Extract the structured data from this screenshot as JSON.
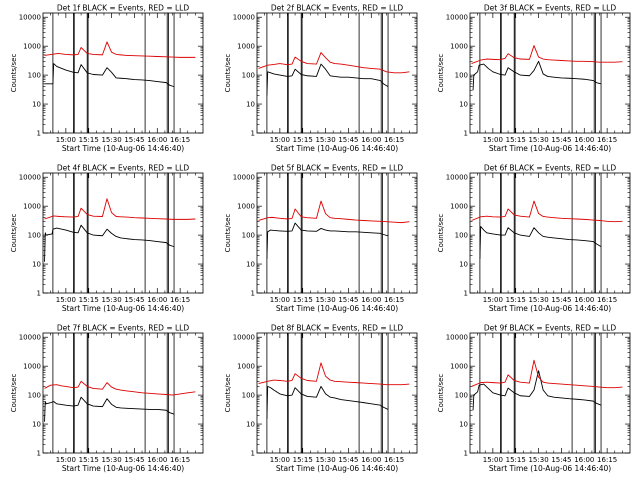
{
  "colors": {
    "events": "#000000",
    "lld": "#dd0000",
    "axis": "#000000"
  },
  "shared": {
    "xlabel": "Start Time (10-Aug-06 14:46:40)",
    "ylabel": "Counts/sec",
    "xtick_labels": [
      "15:00",
      "15:15",
      "15:30",
      "15:45",
      "16:00",
      "16:15"
    ],
    "xtick_minutes": [
      0,
      15,
      30,
      45,
      60,
      75
    ],
    "ytick_labels": [
      "1",
      "10",
      "100",
      "1000",
      "10000"
    ],
    "ytick_values": [
      1,
      10,
      100,
      1000,
      10000
    ],
    "xlim_minutes": [
      -15,
      90
    ],
    "ylim": [
      1,
      14000
    ],
    "scale_y": "log",
    "vertical_markers_minutes": [
      -8.5,
      5,
      5.5,
      14,
      14.6,
      52,
      66.5,
      67.3,
      71
    ]
  },
  "chart_data": [
    {
      "type": "line",
      "title": "Det 1f BLACK = Events, RED = LLD",
      "xlabel": "Start Time (10-Aug-06 14:46:40)",
      "ylabel": "Counts/sec",
      "scale_y": "log",
      "series": [
        {
          "name": "Events",
          "x": [
            -14,
            -8.5,
            -8,
            -6,
            0,
            5,
            8,
            10,
            14,
            18,
            24,
            27,
            30,
            33,
            36,
            40,
            45,
            50,
            55,
            60,
            66,
            68,
            71
          ],
          "y": [
            50,
            50,
            250,
            200,
            150,
            125,
            120,
            230,
            120,
            105,
            100,
            180,
            125,
            80,
            78,
            75,
            70,
            68,
            65,
            60,
            55,
            45,
            40
          ]
        },
        {
          "name": "LLD",
          "x": [
            -14,
            -5,
            0,
            5,
            8,
            10,
            14,
            18,
            24,
            27,
            30,
            33,
            36,
            40,
            45,
            50,
            55,
            60,
            66,
            70,
            75,
            80,
            85
          ],
          "y": [
            480,
            560,
            520,
            500,
            520,
            900,
            560,
            520,
            500,
            1400,
            620,
            520,
            500,
            480,
            470,
            460,
            450,
            440,
            430,
            420,
            410,
            410,
            410
          ]
        }
      ]
    },
    {
      "type": "line",
      "title": "Det 2f BLACK = Events, RED = LLD",
      "xlabel": "Start Time (10-Aug-06 14:46:40)",
      "ylabel": "Counts/sec",
      "scale_y": "log",
      "series": [
        {
          "name": "Events",
          "x": [
            -8.5,
            -8,
            -6,
            -4,
            0,
            5,
            8,
            10,
            14,
            18,
            24,
            27,
            30,
            33,
            36,
            40,
            45,
            50,
            55,
            60,
            66,
            68,
            71
          ],
          "y": [
            20,
            130,
            120,
            110,
            100,
            90,
            95,
            160,
            105,
            95,
            90,
            240,
            160,
            95,
            90,
            85,
            85,
            80,
            75,
            75,
            65,
            50,
            40
          ]
        },
        {
          "name": "LLD",
          "x": [
            -14,
            -8,
            -5,
            0,
            5,
            8,
            10,
            14,
            18,
            24,
            27,
            30,
            33,
            36,
            40,
            45,
            50,
            55,
            60,
            66,
            70,
            75,
            80,
            85
          ],
          "y": [
            170,
            220,
            230,
            250,
            230,
            240,
            420,
            300,
            250,
            240,
            600,
            400,
            280,
            250,
            240,
            220,
            200,
            180,
            170,
            160,
            130,
            120,
            120,
            130
          ]
        }
      ]
    },
    {
      "type": "line",
      "title": "Det 3f BLACK = Events, RED = LLD",
      "xlabel": "Start Time (10-Aug-06 14:46:40)",
      "ylabel": "Counts/sec",
      "scale_y": "log",
      "series": [
        {
          "name": "Events",
          "x": [
            -13,
            -12.5,
            -10,
            -9,
            -6,
            -3,
            0,
            5,
            8,
            10,
            14,
            18,
            24,
            27,
            30,
            33,
            36,
            40,
            45,
            50,
            55,
            60,
            66,
            68,
            71
          ],
          "y": [
            30,
            100,
            130,
            220,
            240,
            170,
            130,
            105,
            100,
            180,
            130,
            100,
            95,
            145,
            300,
            110,
            90,
            85,
            80,
            78,
            75,
            72,
            65,
            55,
            50
          ]
        },
        {
          "name": "LLD",
          "x": [
            -14,
            -8,
            -4,
            0,
            5,
            8,
            10,
            14,
            18,
            24,
            27,
            30,
            33,
            36,
            40,
            45,
            50,
            55,
            60,
            66,
            70,
            75,
            80,
            85
          ],
          "y": [
            250,
            330,
            360,
            350,
            340,
            380,
            550,
            400,
            360,
            350,
            1050,
            420,
            360,
            340,
            330,
            320,
            310,
            300,
            300,
            290,
            280,
            280,
            280,
            290
          ]
        }
      ]
    },
    {
      "type": "line",
      "title": "Det 4f BLACK = Events, RED = LLD",
      "xlabel": "Start Time (10-Aug-06 14:46:40)",
      "ylabel": "Counts/sec",
      "scale_y": "log",
      "series": [
        {
          "name": "Events",
          "x": [
            -14,
            -13.5,
            -13,
            -9,
            -8.5,
            -6,
            0,
            5,
            8,
            10,
            14,
            18,
            24,
            27,
            30,
            33,
            36,
            40,
            45,
            50,
            55,
            60,
            66,
            68,
            71
          ],
          "y": [
            12,
            120,
            100,
            110,
            160,
            175,
            150,
            125,
            120,
            220,
            120,
            100,
            95,
            160,
            115,
            90,
            80,
            75,
            70,
            68,
            65,
            60,
            55,
            45,
            40
          ]
        },
        {
          "name": "LLD",
          "x": [
            -14,
            -8,
            -4,
            0,
            5,
            8,
            10,
            14,
            18,
            24,
            27,
            30,
            33,
            36,
            40,
            45,
            50,
            55,
            60,
            66,
            70,
            75,
            80,
            85
          ],
          "y": [
            360,
            460,
            440,
            430,
            420,
            440,
            850,
            520,
            450,
            440,
            1800,
            600,
            440,
            430,
            420,
            400,
            390,
            380,
            370,
            360,
            350,
            350,
            350,
            360
          ]
        }
      ]
    },
    {
      "type": "line",
      "title": "Det 5f BLACK = Events, RED = LLD",
      "xlabel": "Start Time (10-Aug-06 14:46:40)",
      "ylabel": "Counts/sec",
      "scale_y": "log",
      "series": [
        {
          "name": "Events",
          "x": [
            -8.5,
            -8,
            -6,
            -4,
            0,
            5,
            8,
            10,
            14,
            18,
            24,
            27,
            30,
            33,
            36,
            40,
            45,
            50,
            55,
            60,
            66,
            68,
            71
          ],
          "y": [
            15,
            130,
            150,
            145,
            140,
            135,
            140,
            260,
            150,
            140,
            135,
            170,
            150,
            140,
            140,
            135,
            130,
            130,
            125,
            120,
            115,
            105,
            95
          ]
        },
        {
          "name": "LLD",
          "x": [
            -14,
            -8,
            -5,
            0,
            5,
            8,
            10,
            14,
            18,
            24,
            27,
            30,
            33,
            36,
            40,
            45,
            50,
            55,
            60,
            66,
            70,
            75,
            80,
            85
          ],
          "y": [
            320,
            400,
            410,
            380,
            360,
            380,
            800,
            430,
            400,
            380,
            1500,
            550,
            400,
            380,
            370,
            350,
            330,
            320,
            310,
            300,
            290,
            280,
            270,
            290
          ]
        }
      ]
    },
    {
      "type": "line",
      "title": "Det 6f BLACK = Events, RED = LLD",
      "xlabel": "Start Time (10-Aug-06 14:46:40)",
      "ylabel": "Counts/sec",
      "scale_y": "log",
      "series": [
        {
          "name": "Events",
          "x": [
            -8.5,
            -8,
            -6,
            -4,
            0,
            5,
            8,
            10,
            14,
            18,
            24,
            27,
            30,
            33,
            36,
            40,
            45,
            50,
            55,
            60,
            66,
            68,
            71
          ],
          "y": [
            15,
            200,
            150,
            120,
            110,
            100,
            100,
            180,
            120,
            100,
            90,
            180,
            120,
            90,
            85,
            80,
            75,
            70,
            68,
            65,
            60,
            50,
            40
          ]
        },
        {
          "name": "LLD",
          "x": [
            -14,
            -8,
            -4,
            0,
            5,
            8,
            10,
            14,
            18,
            24,
            27,
            30,
            33,
            36,
            40,
            45,
            50,
            55,
            60,
            66,
            70,
            75,
            80,
            85
          ],
          "y": [
            320,
            430,
            450,
            430,
            420,
            440,
            800,
            500,
            450,
            420,
            1500,
            560,
            440,
            420,
            400,
            380,
            370,
            360,
            350,
            330,
            320,
            300,
            290,
            300
          ]
        }
      ]
    },
    {
      "type": "line",
      "title": "Det 7f BLACK = Events, RED = LLD",
      "xlabel": "Start Time (10-Aug-06 14:46:40)",
      "ylabel": "Counts/sec",
      "scale_y": "log",
      "series": [
        {
          "name": "Events",
          "x": [
            -14,
            -13.5,
            -13,
            -10,
            -8,
            -6,
            0,
            5,
            8,
            10,
            14,
            18,
            24,
            27,
            30,
            33,
            36,
            40,
            45,
            50,
            55,
            60,
            66,
            68,
            71
          ],
          "y": [
            12,
            60,
            50,
            55,
            60,
            50,
            45,
            42,
            45,
            85,
            50,
            42,
            40,
            75,
            48,
            38,
            36,
            35,
            34,
            33,
            32,
            32,
            30,
            25,
            22
          ]
        },
        {
          "name": "LLD",
          "x": [
            -14,
            -10,
            -6,
            -3,
            0,
            5,
            8,
            10,
            14,
            18,
            24,
            27,
            30,
            33,
            36,
            40,
            45,
            50,
            55,
            60,
            66,
            70,
            75,
            80,
            85
          ],
          "y": [
            170,
            220,
            230,
            210,
            200,
            180,
            190,
            300,
            200,
            170,
            160,
            270,
            190,
            160,
            150,
            140,
            130,
            120,
            115,
            110,
            105,
            100,
            110,
            120,
            130
          ]
        }
      ]
    },
    {
      "type": "line",
      "title": "Det 8f BLACK = Events, RED = LLD",
      "xlabel": "Start Time (10-Aug-06 14:46:40)",
      "ylabel": "Counts/sec",
      "scale_y": "log",
      "series": [
        {
          "name": "Events",
          "x": [
            -8.5,
            -8,
            -6,
            -4,
            0,
            5,
            8,
            10,
            14,
            18,
            24,
            27,
            30,
            33,
            36,
            40,
            45,
            50,
            55,
            60,
            66,
            68,
            71
          ],
          "y": [
            15,
            200,
            180,
            150,
            110,
            95,
            100,
            180,
            110,
            90,
            85,
            200,
            110,
            85,
            80,
            70,
            65,
            60,
            55,
            50,
            45,
            38,
            32
          ]
        },
        {
          "name": "LLD",
          "x": [
            -14,
            -8,
            -4,
            0,
            5,
            8,
            10,
            14,
            18,
            24,
            27,
            30,
            33,
            36,
            40,
            45,
            50,
            55,
            60,
            66,
            70,
            75,
            80,
            85
          ],
          "y": [
            250,
            300,
            330,
            320,
            300,
            320,
            550,
            380,
            320,
            300,
            1300,
            450,
            330,
            300,
            290,
            280,
            270,
            260,
            250,
            240,
            230,
            230,
            230,
            240
          ]
        }
      ]
    },
    {
      "type": "line",
      "title": "Det 9f BLACK = Events, RED = LLD",
      "xlabel": "Start Time (10-Aug-06 14:46:40)",
      "ylabel": "Counts/sec",
      "scale_y": "log",
      "series": [
        {
          "name": "Events",
          "x": [
            -13,
            -12.5,
            -10,
            -9,
            -6,
            -3,
            0,
            5,
            8,
            10,
            14,
            18,
            24,
            27,
            30,
            33,
            36,
            40,
            45,
            50,
            55,
            60,
            66,
            68,
            71
          ],
          "y": [
            30,
            100,
            130,
            220,
            240,
            170,
            120,
            100,
            95,
            175,
            120,
            95,
            90,
            150,
            700,
            150,
            95,
            85,
            80,
            75,
            72,
            68,
            62,
            52,
            45
          ]
        },
        {
          "name": "LLD",
          "x": [
            -14,
            -8,
            -4,
            0,
            5,
            8,
            10,
            14,
            18,
            24,
            27,
            30,
            33,
            36,
            40,
            45,
            50,
            55,
            60,
            66,
            70,
            75,
            80,
            85
          ],
          "y": [
            200,
            270,
            280,
            270,
            260,
            280,
            500,
            320,
            280,
            260,
            1600,
            420,
            280,
            260,
            250,
            240,
            230,
            220,
            210,
            200,
            190,
            180,
            180,
            190
          ]
        }
      ]
    }
  ]
}
